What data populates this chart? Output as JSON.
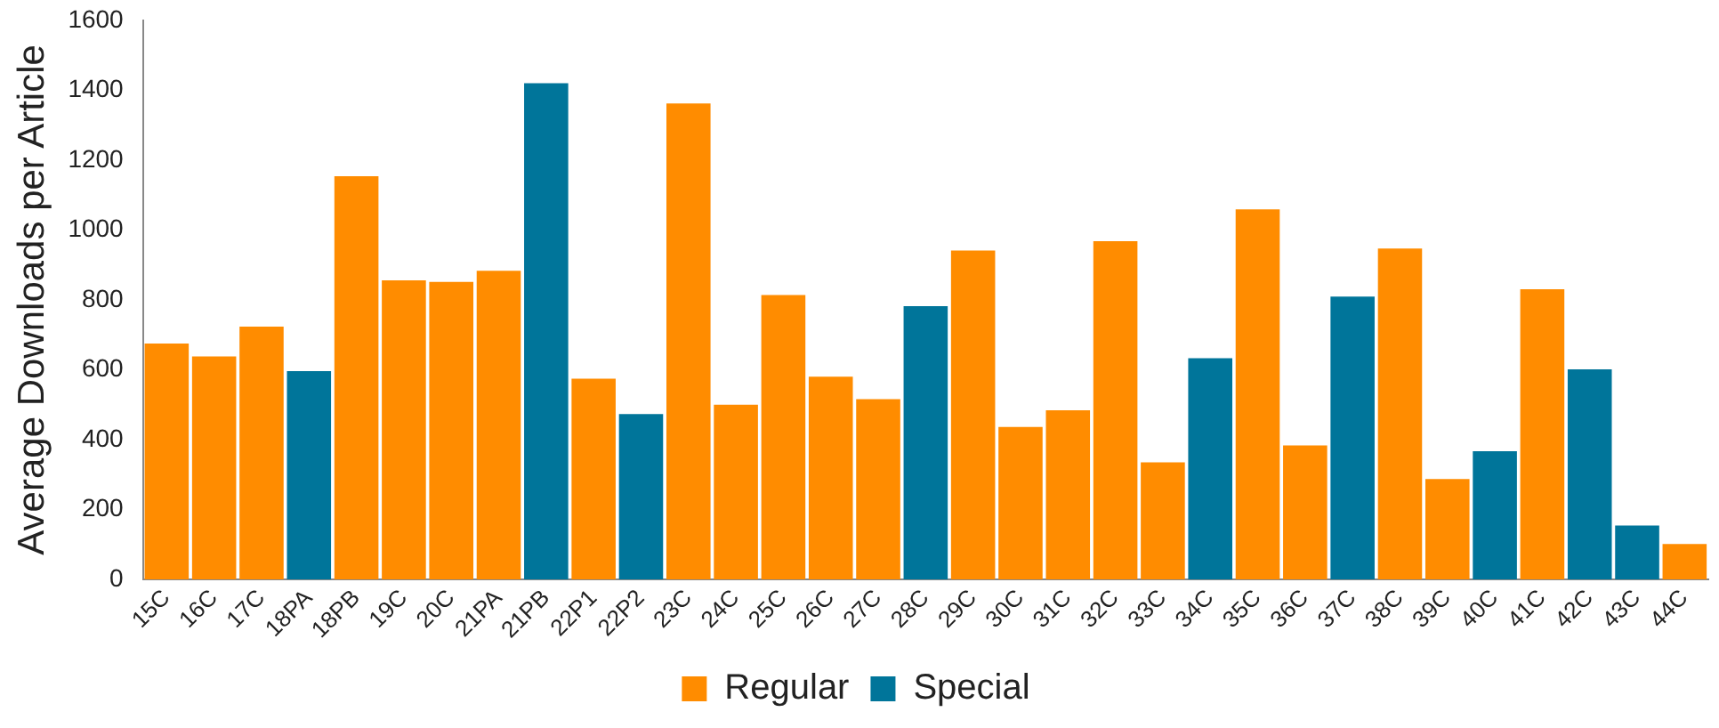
{
  "chart_data": {
    "type": "bar",
    "ylabel": "Average Downloads per Article",
    "categories": [
      "15C",
      "16C",
      "17C",
      "18PA",
      "18PB",
      "19C",
      "20C",
      "21PA",
      "21PB",
      "22P1",
      "22P2",
      "23C",
      "24C",
      "25C",
      "26C",
      "27C",
      "28C",
      "29C",
      "30C",
      "31C",
      "32C",
      "33C",
      "34C",
      "35C",
      "36C",
      "37C",
      "38C",
      "39C",
      "40C",
      "41C",
      "42C",
      "43C",
      "44C"
    ],
    "series": [
      {
        "name": "Regular",
        "color": "#ff8c00",
        "values": [
          675,
          638,
          723,
          null,
          1154,
          856,
          851,
          883,
          null,
          574,
          null,
          1362,
          500,
          814,
          580,
          516,
          null,
          941,
          436,
          484,
          968,
          335,
          null,
          1059,
          383,
          null,
          947,
          287,
          null,
          830,
          null,
          null,
          101
        ]
      },
      {
        "name": "Special",
        "color": "#00759a",
        "values": [
          null,
          null,
          null,
          596,
          null,
          null,
          null,
          null,
          1420,
          null,
          473,
          null,
          null,
          null,
          null,
          null,
          782,
          null,
          null,
          null,
          null,
          null,
          633,
          null,
          null,
          809,
          null,
          null,
          367,
          null,
          601,
          154,
          null
        ]
      }
    ],
    "ylim": [
      0,
      1600
    ],
    "yticks": [
      0,
      200,
      400,
      600,
      800,
      1000,
      1200,
      1400,
      1600
    ],
    "grid": false,
    "legend": "bottom"
  }
}
